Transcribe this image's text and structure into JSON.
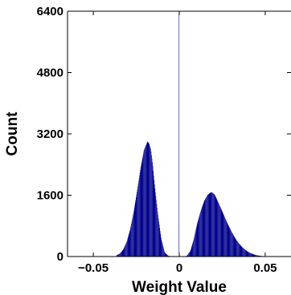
{
  "chart_data": {
    "type": "bar",
    "subtype": "histogram",
    "title": "",
    "xlabel": "Weight Value",
    "ylabel": "Count",
    "xlim": [
      -0.065,
      0.065
    ],
    "ylim": [
      0,
      6400
    ],
    "x_ticks": [
      -0.05,
      0,
      0.05
    ],
    "x_tick_labels": [
      "−0.05",
      "0",
      "0.05"
    ],
    "y_ticks": [
      0,
      1600,
      3200,
      4800,
      6400
    ],
    "y_tick_labels": [
      "0",
      "1600",
      "3200",
      "4800",
      "6400"
    ],
    "grid": false,
    "legend": "none",
    "bar_color": "#00008b",
    "bin_width": 0.00025,
    "bins": {
      "x": [
        -0.0365,
        -0.0345,
        -0.0325,
        -0.0305,
        -0.0285,
        -0.0265,
        -0.0245,
        -0.0225,
        -0.0205,
        -0.0185,
        -0.0175,
        -0.0165,
        -0.0155,
        -0.0145,
        -0.0125,
        -0.0105,
        -0.0085,
        -0.0065,
        -0.0045,
        -0.0025,
        -0.0005,
        0.0,
        0.0005,
        0.0025,
        0.0045,
        0.0065,
        0.0085,
        0.0105,
        0.0125,
        0.0145,
        0.0165,
        0.0185,
        0.0195,
        0.0205,
        0.0215,
        0.0225,
        0.0245,
        0.0265,
        0.0285,
        0.0305,
        0.0325,
        0.0345,
        0.0365,
        0.0385,
        0.0405,
        0.0425,
        0.0445,
        0.0465,
        0.0495
      ],
      "count": [
        30,
        80,
        190,
        390,
        720,
        1160,
        1720,
        2300,
        2780,
        3000,
        2950,
        2780,
        2420,
        1930,
        1120,
        460,
        110,
        20,
        5,
        0,
        0,
        6400,
        0,
        0,
        20,
        150,
        460,
        870,
        1190,
        1450,
        1610,
        1680,
        1660,
        1620,
        1530,
        1430,
        1230,
        1020,
        820,
        640,
        480,
        350,
        250,
        170,
        110,
        70,
        40,
        20,
        5
      ]
    }
  }
}
